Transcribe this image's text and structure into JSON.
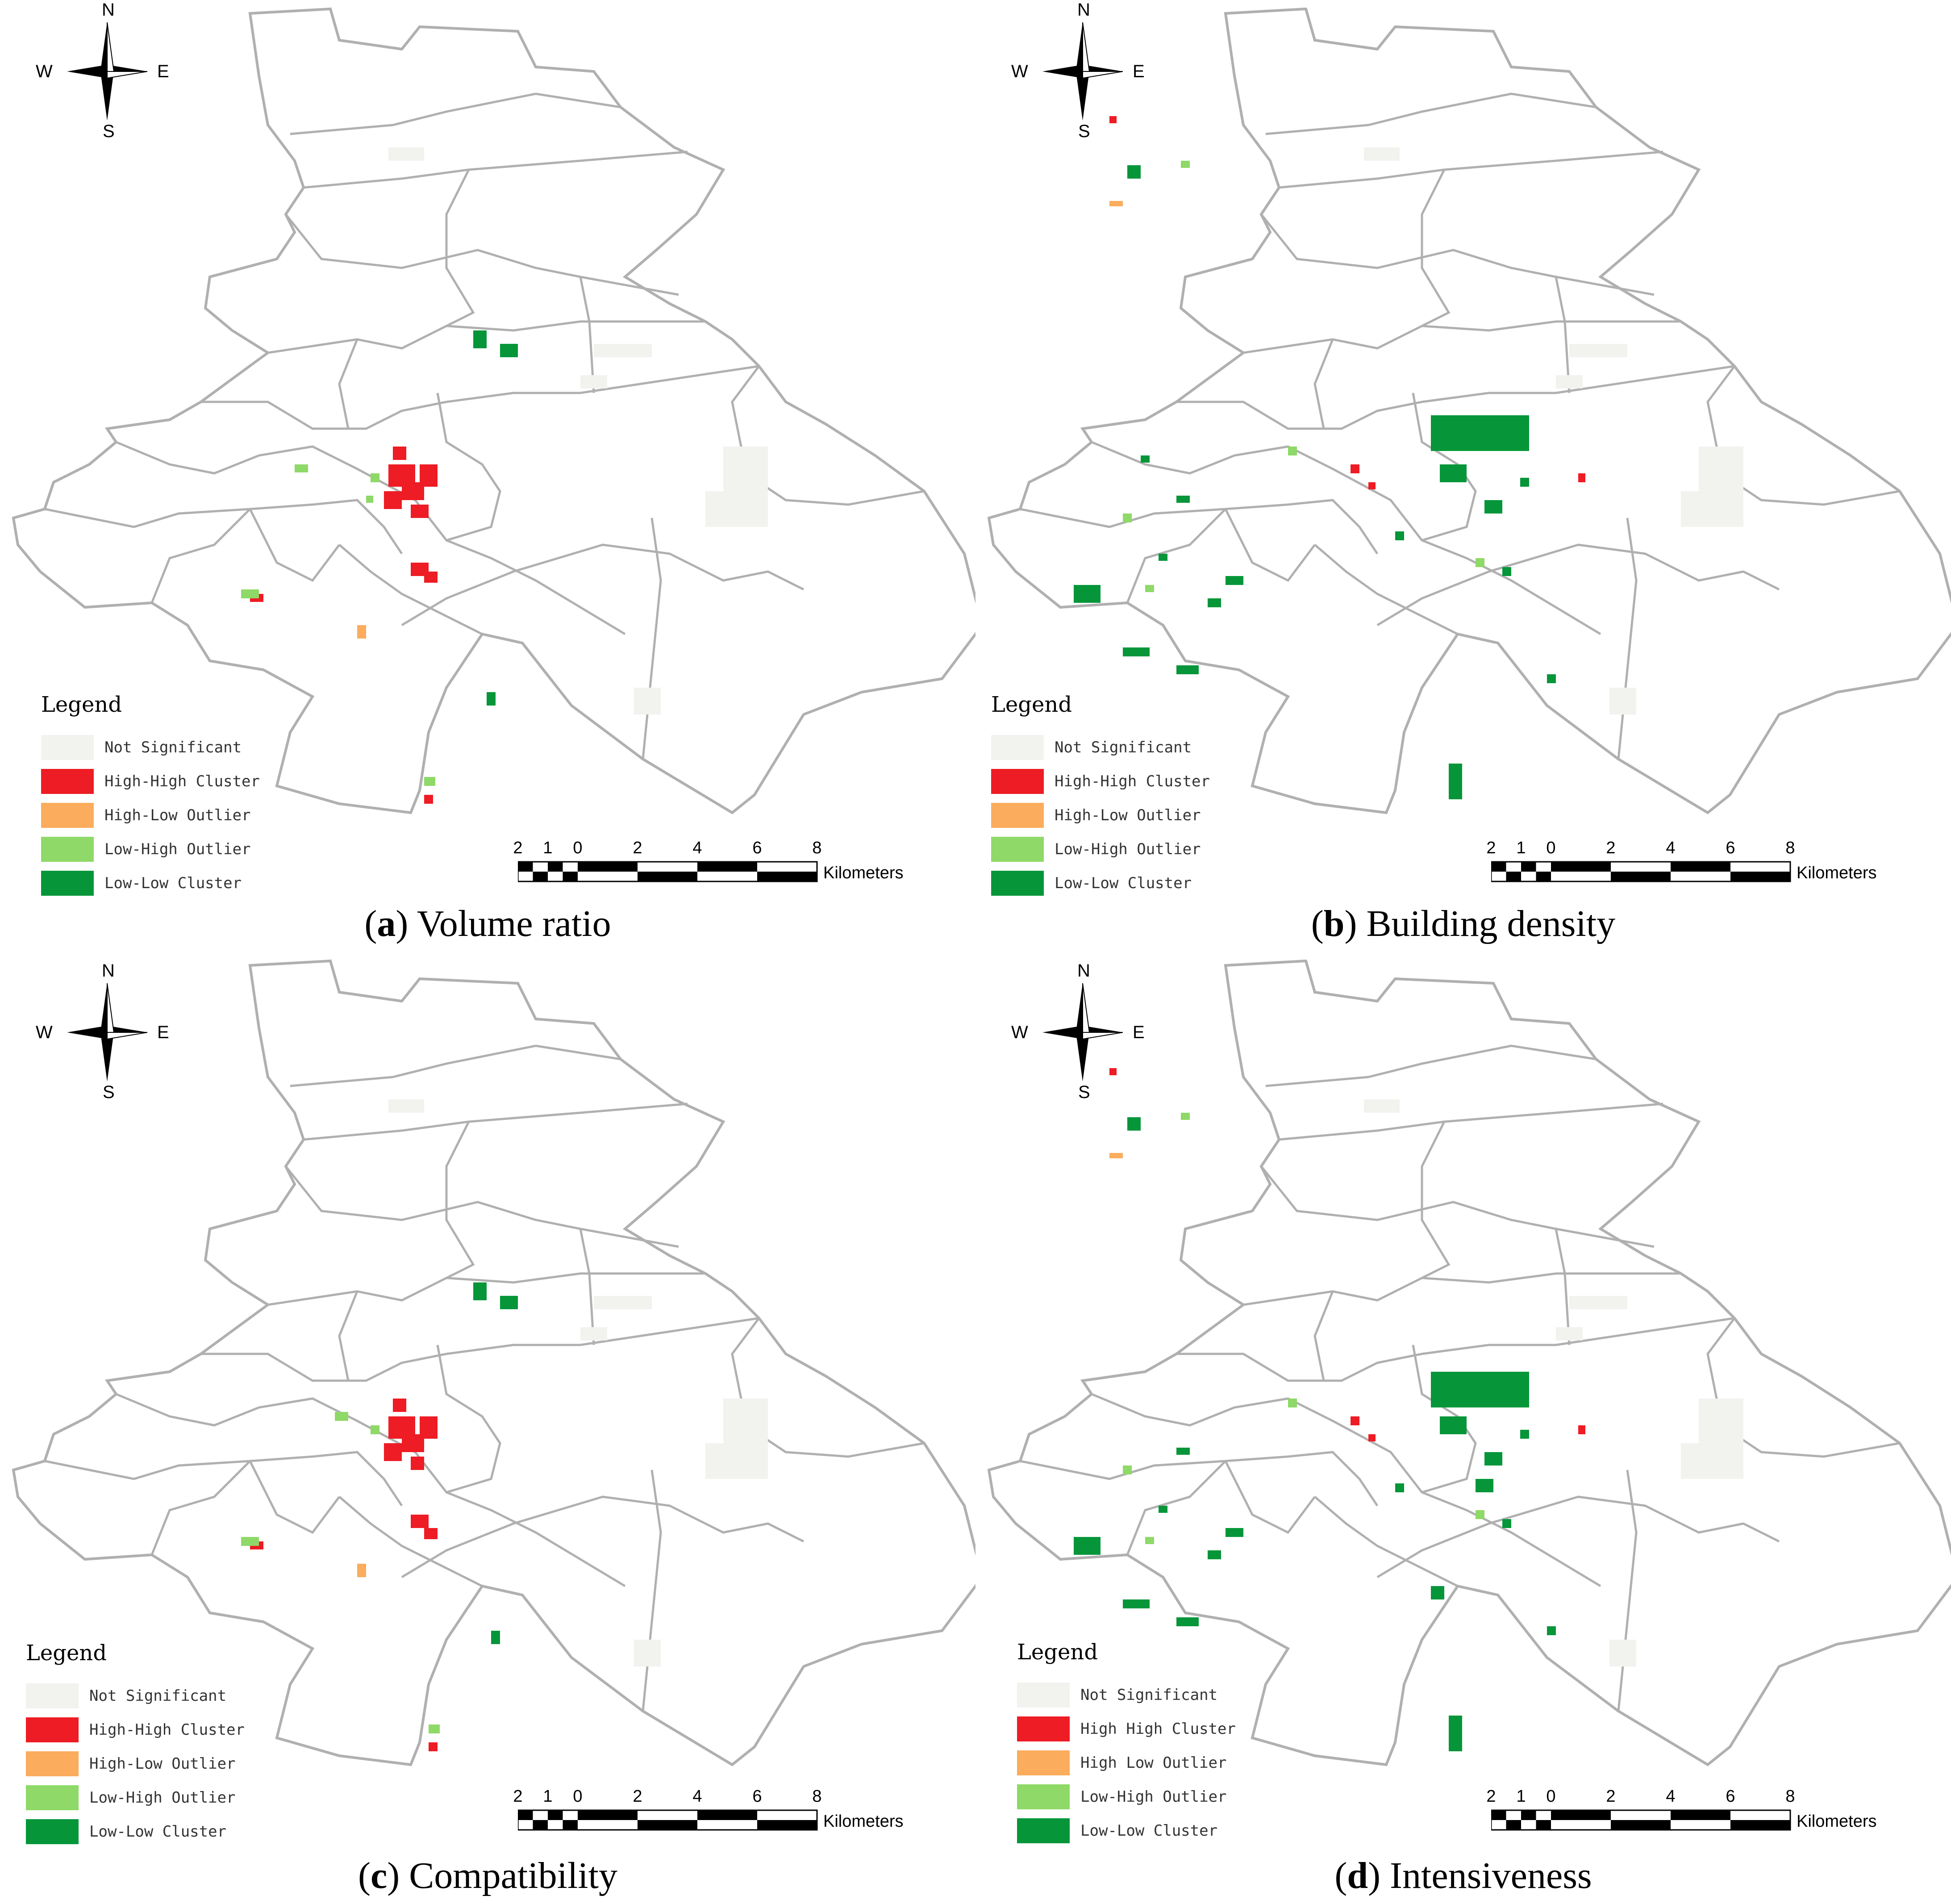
{
  "colors": {
    "boundary": "#b0b0b0",
    "not_significant": "#f2f2ee",
    "high_high": "#ee1c24",
    "high_low": "#fbac5c",
    "low_high": "#8ed967",
    "low_low": "#069639"
  },
  "compass": {
    "n": "N",
    "s": "S",
    "e": "E",
    "w": "W",
    "icon": "north-arrow-icon"
  },
  "scale_bar": {
    "ticks": [
      "2",
      "1",
      "0",
      "2",
      "4",
      "6",
      "8"
    ],
    "unit": "Kilometers"
  },
  "panels": [
    {
      "letter": "a",
      "caption": "Volume ratio",
      "legend": {
        "title": "Legend",
        "items": [
          "Not Significant",
          "High-High Cluster",
          "High-Low Outlier",
          "Low-High Outlier",
          "Low-Low Cluster"
        ]
      }
    },
    {
      "letter": "b",
      "caption": "Building density",
      "legend": {
        "title": "Legend",
        "items": [
          "Not Significant",
          "High-High Cluster",
          "High-Low Outlier",
          "Low-High Outlier",
          "Low-Low Cluster"
        ]
      }
    },
    {
      "letter": "c",
      "caption": "Compatibility",
      "legend": {
        "title": "Legend",
        "items": [
          "Not Significant",
          "High-High Cluster",
          "High-Low Outlier",
          "Low-High Outlier",
          "Low-Low Cluster"
        ]
      }
    },
    {
      "letter": "d",
      "caption": "Intensiveness",
      "legend": {
        "title": "Legend",
        "items": [
          "Not Significant",
          "High High Cluster",
          "High Low Outlier",
          "Low-High Outlier",
          "Low-Low Cluster"
        ]
      }
    }
  ]
}
